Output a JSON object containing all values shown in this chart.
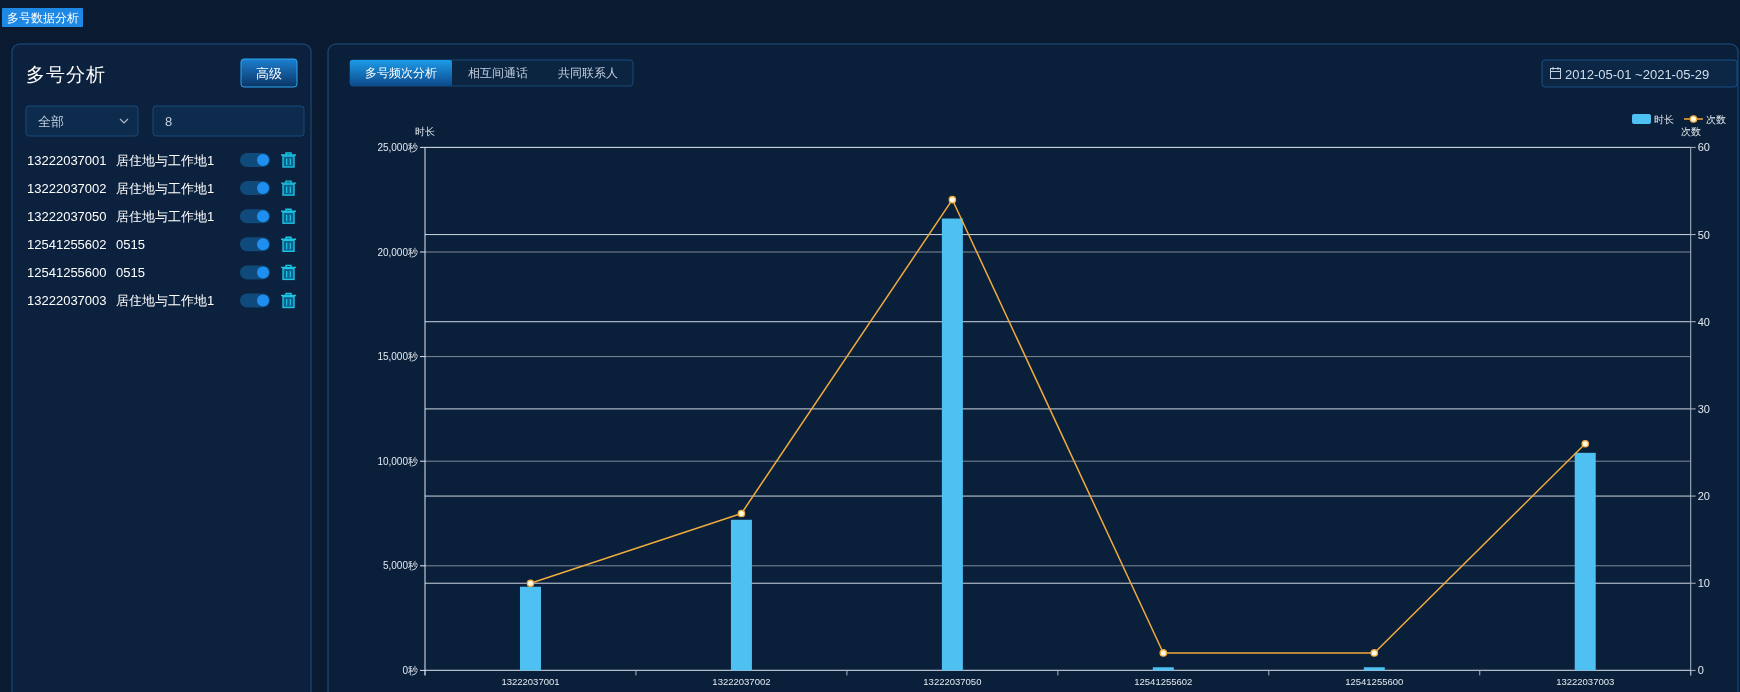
{
  "chart_data": [
    {
      "type": "other",
      "title": "多号分析",
      "annotations": [
        "多号数据分析",
        "高级",
        "全部",
        "8",
        "13222037001",
        "居住地与工作地1",
        "13222037002",
        "居住地与工作地1",
        "13222037050",
        "居住地与工作地1",
        "12541255602",
        "0515",
        "12541255600",
        "0515",
        "13222037003",
        "居住地与工作地1"
      ]
    },
    {
      "type": "bar",
      "title": "多号频次分析",
      "annotations": [
        "相互间通话",
        "共同联系人",
        "2012-05-01 ~2021-05-29"
      ],
      "categories": [
        "13222037001",
        "13222037002",
        "13222037050",
        "12541255602",
        "12541255600",
        "13222037003"
      ],
      "series": [
        {
          "name": "时长",
          "type": "bar",
          "color": "#4fc0f2",
          "values": [
            4000,
            7200,
            21600,
            150,
            150,
            10400
          ]
        },
        {
          "name": "次数",
          "type": "line",
          "axis": "y2",
          "color": "#f0ab3c",
          "values": [
            10,
            18,
            54,
            2,
            2,
            26
          ]
        }
      ],
      "ylabel": "时长",
      "y2label": "次数",
      "ylim": [
        0,
        25000
      ],
      "yticks": [
        {
          "value": 0,
          "label": "0秒"
        },
        {
          "value": 5000,
          "label": "5,000秒"
        },
        {
          "value": 10000,
          "label": "10,000秒"
        },
        {
          "value": 15000,
          "label": "15,000秒"
        },
        {
          "value": 20000,
          "label": "20,000秒"
        },
        {
          "value": 25000,
          "label": "25,000秒"
        }
      ],
      "y2lim": [
        0,
        60
      ],
      "y2ticks": [
        0,
        10,
        20,
        30,
        40,
        50,
        60
      ],
      "grid": "y",
      "legend": "top right",
      "marker": "circle"
    }
  ]
}
